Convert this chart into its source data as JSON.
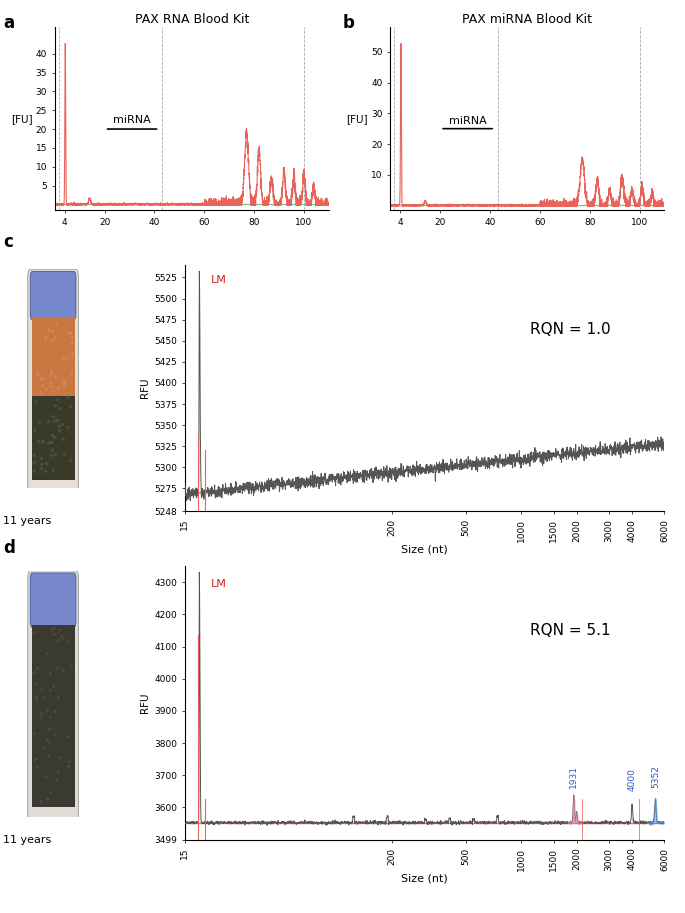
{
  "panel_a_title": "PAX RNA Blood Kit",
  "panel_b_title": "PAX miRNA Blood Kit",
  "panel_a_ylabel": "[FU]",
  "panel_b_ylabel": "[FU]",
  "panel_a_yticks": [
    5,
    10,
    15,
    20,
    25,
    30,
    35,
    40
  ],
  "panel_b_yticks": [
    10,
    20,
    30,
    40,
    50
  ],
  "panel_ab_xticks": [
    4,
    20,
    40,
    60,
    80,
    100
  ],
  "panel_c_ylabel": "RFU",
  "panel_d_ylabel": "RFU",
  "panel_c_yticks": [
    5248,
    5275,
    5300,
    5325,
    5350,
    5375,
    5400,
    5425,
    5450,
    5475,
    5500,
    5525
  ],
  "panel_d_yticks": [
    3499,
    3600,
    3700,
    3800,
    3900,
    4000,
    4100,
    4200,
    4300
  ],
  "panel_cd_xtick_labels": [
    "15",
    "200",
    "500",
    "1000",
    "1500",
    "2000",
    "3000",
    "4000",
    "6000"
  ],
  "rqn_c": "RQN = 1.0",
  "rqn_d": "RQN = 5.1",
  "mirna_label": "miRNA",
  "lm_label": "LM",
  "label_1931": "1931",
  "label_4000": "4000",
  "label_5352": "5352",
  "red_color": "#e8645a",
  "green_color": "#8ab88a",
  "dark_red": "#cc2222",
  "blue_peak": "#5599dd",
  "pink_peak": "#dd8899",
  "trace_color": "#555555",
  "nt_min": 15,
  "nt_max": 6000
}
